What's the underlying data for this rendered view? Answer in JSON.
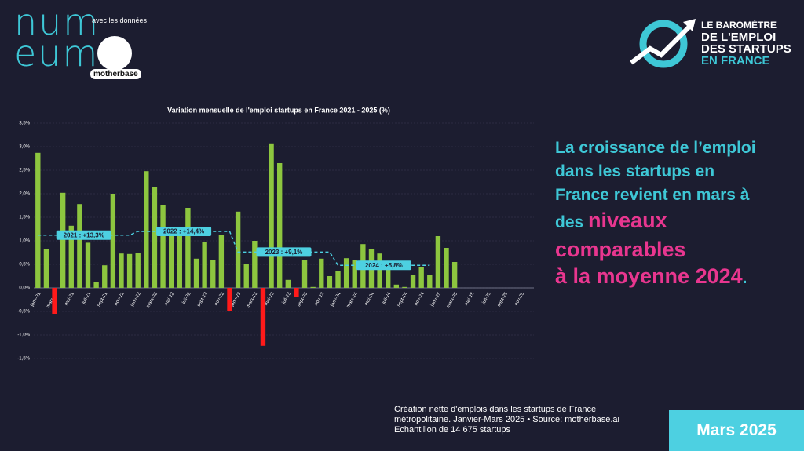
{
  "brand": {
    "line1": "num",
    "line2": "eum",
    "partner_intro": "avec les données",
    "partner": "motherbase"
  },
  "barometer": {
    "lines": [
      "LE BAROMÈTRE",
      "DE L'EMPLOI",
      "DES STARTUPS",
      "EN FRANCE"
    ]
  },
  "headline": {
    "lines": [
      "La croissance de l’emploi",
      "dans les startups en",
      "France revient en mars à"
    ],
    "lead": "des",
    "highlight": [
      "niveaux",
      "comparables",
      "à la moyenne 2024"
    ],
    "end": "."
  },
  "footnote": [
    "Création nette d'emplois dans les startups de France",
    "métropolitaine. Janvier-Mars 2025 • Source: motherbase.ai",
    "Echantillon de 14 675 startups"
  ],
  "period": "Mars 2025",
  "chart_data": {
    "type": "bar",
    "title": "Variation mensuelle de l'emploi startups en France 2021 - 2025 (%)",
    "categories": [
      "janv-21",
      null,
      "mars-21",
      null,
      "mai-21",
      null,
      "juil-21",
      null,
      "sept-21",
      null,
      "nov-21",
      null,
      "janv-22",
      null,
      "mars-22",
      null,
      "mai-22",
      null,
      "juil-22",
      null,
      "sept-22",
      null,
      "nov-22",
      null,
      "janv-23",
      null,
      "mars-23",
      null,
      "mai-23",
      null,
      "juil-23",
      null,
      "sept-23",
      null,
      "nov-23",
      null,
      "janv-24",
      null,
      "mars-24",
      null,
      "mai-24",
      null,
      "juil-24",
      null,
      "sept-24",
      null,
      "nov-24",
      null,
      "janv-25",
      null,
      "mars-25",
      null,
      "mai-25",
      null,
      "juil-25",
      null,
      "sept-25",
      null,
      "nov-25",
      null
    ],
    "series": [
      {
        "color": "#8dc63f",
        "negative_color": "#ff1a1a",
        "values": [
          2.87,
          0.82,
          -0.55,
          2.02,
          1.32,
          1.78,
          0.96,
          0.12,
          0.48,
          2.0,
          0.73,
          0.72,
          0.74,
          2.48,
          2.15,
          1.75,
          1.3,
          1.2,
          1.7,
          0.62,
          0.98,
          0.6,
          1.12,
          -0.5,
          1.62,
          0.5,
          1.0,
          -1.23,
          3.07,
          2.65,
          0.17,
          -0.2,
          0.6,
          0.02,
          0.62,
          0.25,
          0.35,
          0.63,
          0.6,
          0.93,
          0.82,
          0.73,
          0.4,
          0.07,
          0.02,
          0.27,
          0.45,
          0.28,
          1.1,
          0.85,
          0.55,
          null,
          null,
          null,
          null,
          null,
          null,
          null,
          null,
          null
        ]
      },
      {
        "color": "#4dd0e1",
        "style": "dashed",
        "values": [
          1.12,
          1.12,
          1.12,
          1.12,
          1.12,
          1.12,
          1.12,
          1.12,
          1.12,
          1.12,
          1.12,
          1.12,
          1.2,
          1.2,
          1.2,
          1.2,
          1.2,
          1.2,
          1.2,
          1.2,
          1.2,
          1.2,
          1.2,
          1.2,
          0.76,
          0.76,
          0.76,
          0.76,
          0.76,
          0.76,
          0.76,
          0.76,
          0.76,
          0.76,
          0.76,
          0.76,
          0.48,
          0.48,
          0.48,
          0.48,
          0.48,
          0.48,
          0.48,
          0.48,
          0.48,
          0.48,
          0.48,
          0.48,
          null,
          null,
          null,
          null,
          null,
          null,
          null,
          null,
          null,
          null,
          null,
          null
        ]
      }
    ],
    "annotations": [
      "2021 : +13,3%",
      "2022 : +14,4%",
      "2023 : +9,1%",
      "2024 : +5,8%"
    ],
    "ylim": [
      -1.5,
      3.5
    ],
    "yticks": [
      {
        "value": -1.5,
        "label": "-1,5%"
      },
      {
        "value": -1.0,
        "label": "-1,0%"
      },
      {
        "value": -0.5,
        "label": "-0,5%"
      },
      {
        "value": 0,
        "label": "0,0%"
      },
      {
        "value": 0.5,
        "label": "0,5%"
      },
      {
        "value": 1.0,
        "label": "1,0%"
      },
      {
        "value": 1.5,
        "label": "1,5%"
      },
      {
        "value": 2.0,
        "label": "2,0%"
      },
      {
        "value": 2.5,
        "label": "2,5%"
      },
      {
        "value": 3.0,
        "label": "3,0%"
      },
      {
        "value": 3.5,
        "label": "3,5%"
      }
    ],
    "grid": true
  }
}
